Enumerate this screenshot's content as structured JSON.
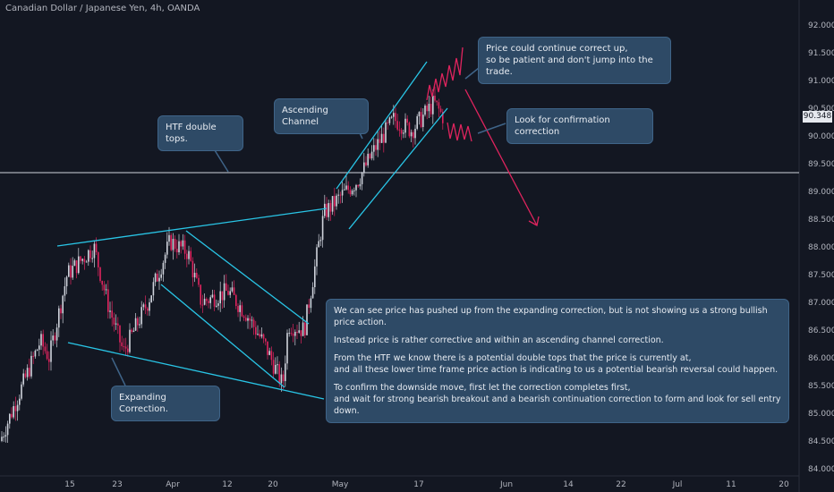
{
  "header": {
    "symbol_title": "Canadian Dollar / Japanese Yen, 4h, OANDA"
  },
  "price_axis": {
    "ticks": [
      "92.000",
      "91.500",
      "91.000",
      "90.500",
      "90.000",
      "89.500",
      "89.000",
      "88.500",
      "88.000",
      "87.500",
      "87.000",
      "86.500",
      "86.000",
      "85.500",
      "85.000",
      "84.500",
      "84.000"
    ],
    "current_price": "90.348"
  },
  "time_axis": {
    "ticks": [
      "15",
      "23",
      "Apr",
      "12",
      "20",
      "May",
      "17",
      "Jun",
      "14",
      "22",
      "Jul",
      "11",
      "20"
    ]
  },
  "annotations": {
    "htf_double_tops": "HTF double tops.",
    "ascending_channel": "Ascending Channel",
    "expanding_correction": "Expanding Correction.",
    "price_continue": "Price could continue correct up,\nso be patient and don't jump into the trade.",
    "confirmation": "Look for confirmation correction",
    "analysis": [
      "We can see price has pushed up from the expanding correction, but is not showing us a strong bullish price action.",
      "Instead price is rather corrective and within an ascending channel correction.",
      "From the HTF we know there is a potential double tops that the price is currently at,\nand all these lower time frame price action is indicating to us a potential bearish reversal could happen.",
      "To confirm the downside move, first let the correction completes first,\nand wait for strong bearish breakout and a bearish continuation correction to form and look for sell entry down."
    ]
  },
  "colors": {
    "background": "#131722",
    "bull_candle": "#cfd3dc",
    "bear_candle": "#e0245e",
    "trendline": "#29c5e6",
    "projection": "#e0245e",
    "note_bg": "#2e4a66",
    "resistance_line": "#cfd3dc"
  },
  "chart_data": {
    "type": "candlestick",
    "symbol": "CADJPY",
    "timeframe": "4h",
    "ylim": [
      83.9,
      92.3
    ],
    "resistance_level": 89.3,
    "price_path": [
      {
        "x": "Mar 8",
        "y": 84.5
      },
      {
        "x": "Mar 12",
        "y": 86.3
      },
      {
        "x": "Mar 13",
        "y": 86.0
      },
      {
        "x": "Mar 16",
        "y": 87.5
      },
      {
        "x": "Mar 19",
        "y": 88.0
      },
      {
        "x": "Mar 21",
        "y": 87.0
      },
      {
        "x": "Mar 24",
        "y": 86.1
      },
      {
        "x": "Mar 27",
        "y": 87.0
      },
      {
        "x": "Mar 31",
        "y": 88.1
      },
      {
        "x": "Apr 3",
        "y": 87.9
      },
      {
        "x": "Apr 6",
        "y": 87.0
      },
      {
        "x": "Apr 10",
        "y": 87.2
      },
      {
        "x": "Apr 14",
        "y": 86.8
      },
      {
        "x": "Apr 18",
        "y": 86.2
      },
      {
        "x": "Apr 20",
        "y": 85.5
      },
      {
        "x": "Apr 21",
        "y": 86.6
      },
      {
        "x": "Apr 24",
        "y": 86.5
      },
      {
        "x": "Apr 27",
        "y": 88.6
      },
      {
        "x": "Apr 30",
        "y": 88.9
      },
      {
        "x": "May 4",
        "y": 89.2
      },
      {
        "x": "May 8",
        "y": 89.8
      },
      {
        "x": "May 11",
        "y": 90.3
      },
      {
        "x": "May 14",
        "y": 90.1
      },
      {
        "x": "May 18",
        "y": 90.6
      },
      {
        "x": "May 19",
        "y": 90.35
      }
    ]
  }
}
